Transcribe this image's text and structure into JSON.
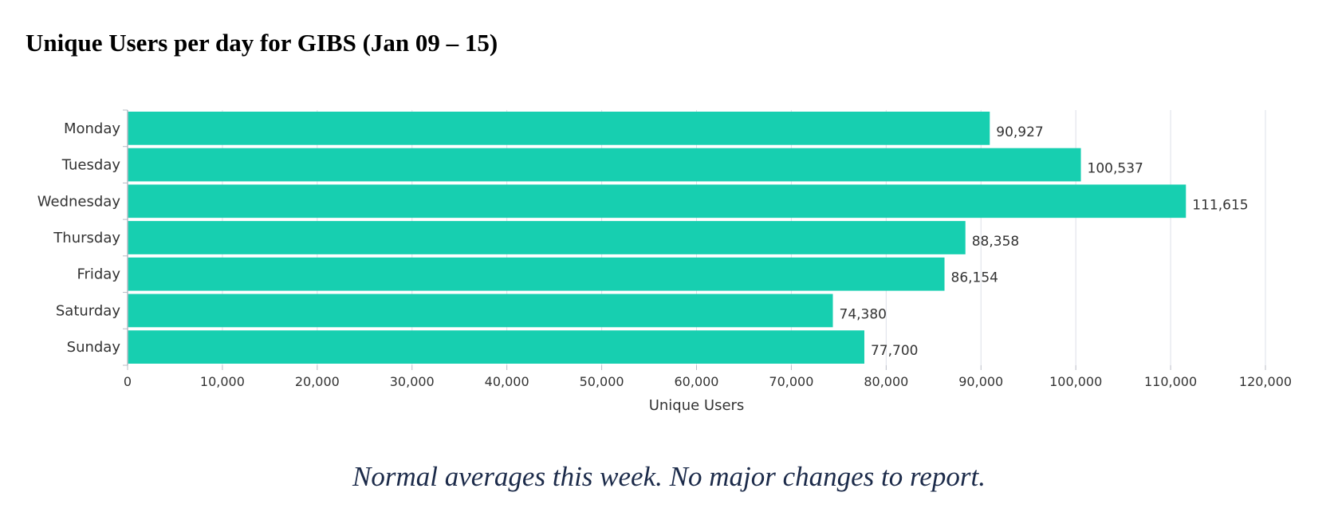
{
  "colors": {
    "bar": "#17cfb0",
    "grid": "#dde0e8",
    "axis": "#b8bcc6",
    "text": "#333333",
    "note": "#1c2b4a"
  },
  "chart_data": {
    "type": "bar",
    "orientation": "horizontal",
    "title": "Unique Users per day for GIBS (Jan 09 – 15)",
    "categories": [
      "Monday",
      "Tuesday",
      "Wednesday",
      "Thursday",
      "Friday",
      "Saturday",
      "Sunday"
    ],
    "values": [
      90927,
      100537,
      111615,
      88358,
      86154,
      74380,
      77700
    ],
    "value_labels": [
      "90,927",
      "100,537",
      "111,615",
      "88,358",
      "86,154",
      "74,380",
      "77,700"
    ],
    "xlabel": "Unique Users",
    "ylabel": "",
    "xlim": [
      0,
      120000
    ],
    "xticks": [
      0,
      10000,
      20000,
      30000,
      40000,
      50000,
      60000,
      70000,
      80000,
      90000,
      100000,
      110000,
      120000
    ],
    "xtick_labels": [
      "0",
      "10,000",
      "20,000",
      "30,000",
      "40,000",
      "50,000",
      "60,000",
      "70,000",
      "80,000",
      "90,000",
      "100,000",
      "110,000",
      "120,000"
    ],
    "grid": true,
    "legend": "none"
  },
  "note": "Normal averages this week.  No major changes to report."
}
